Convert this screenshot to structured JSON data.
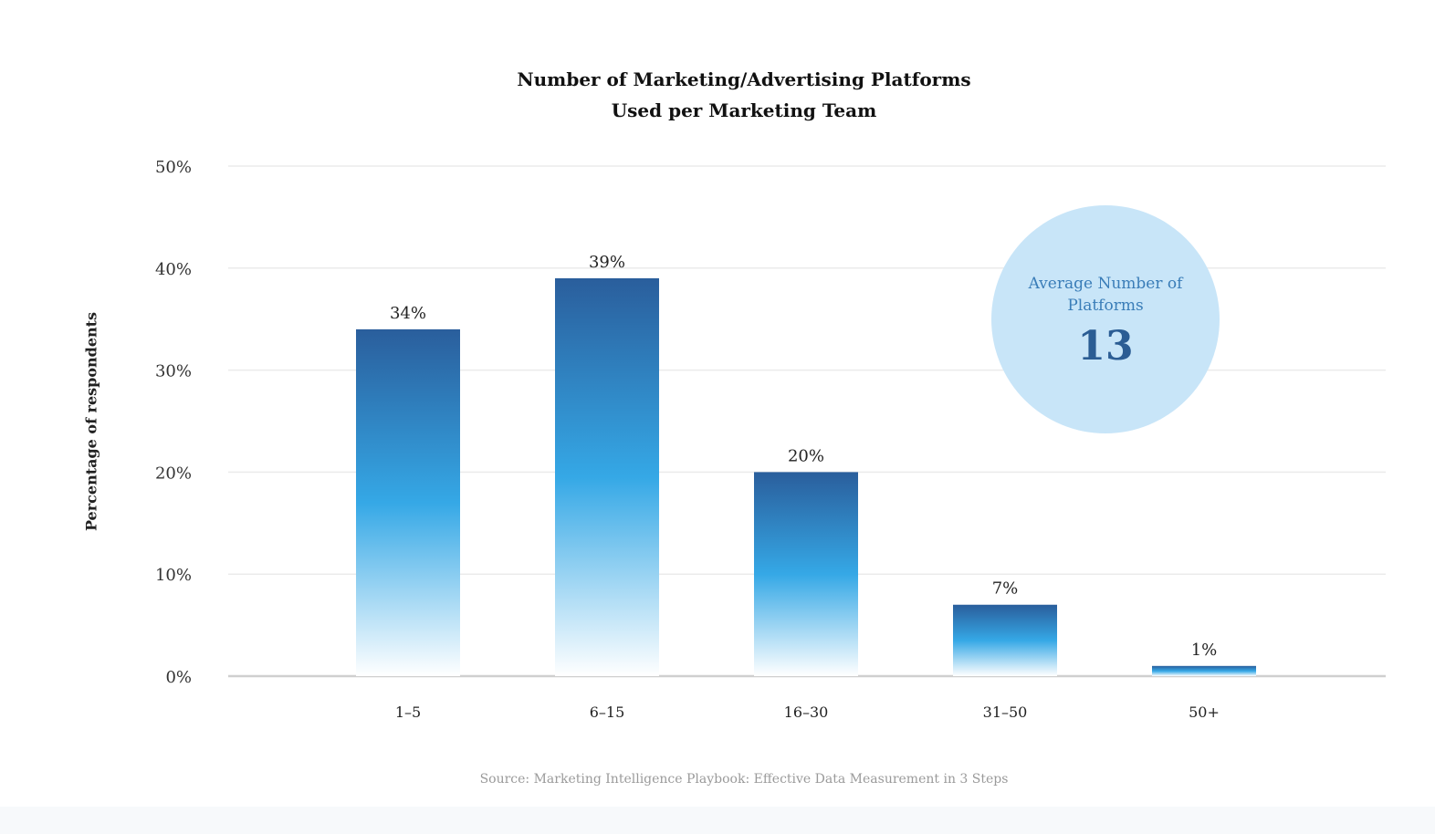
{
  "chart_data": {
    "type": "bar",
    "title": [
      "Number of Marketing/Advertising Platforms",
      "Used per Marketing Team"
    ],
    "xlabel": "",
    "ylabel": "Percentage of respondents",
    "categories": [
      "1–5",
      "6–15",
      "16–30",
      "31–50",
      "50+"
    ],
    "values": [
      34,
      39,
      20,
      7,
      1
    ],
    "data_labels": [
      "34%",
      "39%",
      "20%",
      "7%",
      "1%"
    ],
    "ylim": [
      0,
      50
    ],
    "yticks": [
      0,
      10,
      20,
      30,
      40,
      50
    ],
    "ytick_labels": [
      "0%",
      "10%",
      "20%",
      "30%",
      "40%",
      "50%"
    ],
    "grid": true,
    "legend": "none",
    "colors": {
      "bar_top": "#2a5e9c",
      "bar_mid": "#35a8e6",
      "bar_bottom": "#ffffff",
      "grid": "#ebebeb",
      "baseline": "#cfcfcf"
    }
  },
  "callout": {
    "label": "Average Number of Platforms",
    "value": "13"
  },
  "source": "Source: Marketing Intelligence Playbook: Effective Data Measurement in 3 Steps"
}
